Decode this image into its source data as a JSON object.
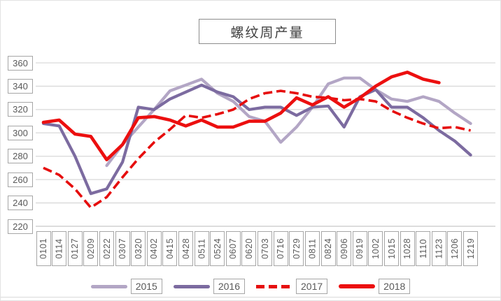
{
  "chart_data": {
    "type": "line",
    "title": "螺纹周产量",
    "xlabel": "",
    "ylabel": "",
    "ylim": [
      220,
      360
    ],
    "ytick_interval": 20,
    "y_ticks": [
      360,
      340,
      320,
      300,
      280,
      260,
      240,
      220
    ],
    "grid": true,
    "legend_position": "bottom",
    "categories": [
      "0101",
      "0114",
      "0127",
      "0209",
      "0222",
      "0307",
      "0320",
      "0402",
      "0415",
      "0428",
      "0511",
      "0524",
      "0607",
      "0620",
      "0703",
      "0716",
      "0729",
      "0811",
      "0824",
      "0906",
      "0919",
      "1002",
      "1015",
      "1028",
      "1110",
      "1123",
      "1206",
      "1219"
    ],
    "series": [
      {
        "name": "2015",
        "color": "#b3a6c5",
        "line_style": "solid",
        "values": [
          null,
          null,
          null,
          null,
          272,
          290,
          305,
          320,
          336,
          341,
          346,
          334,
          327,
          314,
          310,
          292,
          305,
          322,
          342,
          347,
          347,
          337,
          329,
          327,
          331,
          327,
          317,
          308
        ]
      },
      {
        "name": "2016",
        "color": "#7c6ba0",
        "line_style": "solid",
        "values": [
          308,
          306,
          280,
          248,
          252,
          275,
          322,
          320,
          329,
          335,
          341,
          335,
          331,
          320,
          322,
          322,
          315,
          322,
          323,
          305,
          331,
          337,
          322,
          322,
          313,
          302,
          293,
          281
        ]
      },
      {
        "name": "2017",
        "color": "#e60d0d",
        "line_style": "dashed",
        "values": [
          270,
          264,
          252,
          236,
          245,
          262,
          278,
          292,
          303,
          315,
          313,
          316,
          320,
          329,
          334,
          336,
          334,
          331,
          330,
          328,
          329,
          327,
          319,
          313,
          308,
          304,
          305,
          302
        ]
      },
      {
        "name": "2018",
        "color": "#ec0f0f",
        "line_style": "solid",
        "values": [
          309,
          311,
          299,
          297,
          277,
          290,
          313,
          314,
          311,
          306,
          311,
          305,
          305,
          310,
          310,
          317,
          330,
          324,
          331,
          322,
          330,
          340,
          348,
          352,
          346,
          343,
          null,
          null
        ]
      }
    ],
    "gridline_color": "#d9d9d9",
    "axis_line_color": "#c6c6c6",
    "label_text_color": "#595959",
    "label_border_color": "#a6a6a6"
  }
}
